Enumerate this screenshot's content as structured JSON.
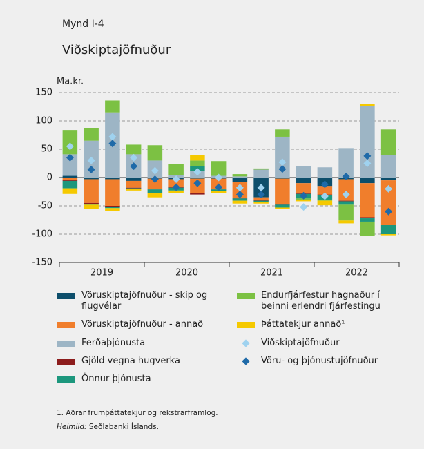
{
  "chart_data": {
    "type": "stacked_bar",
    "figure_label": "Mynd I-4",
    "title": "Viðskiptajöfnuður",
    "y_label": "Ma.kr.",
    "categories": [
      null,
      null,
      null,
      null,
      null,
      null,
      null,
      null,
      null,
      null,
      null,
      null,
      null,
      null,
      null,
      null
    ],
    "year_groups": [
      "2019",
      "2020",
      "2021",
      "2022"
    ],
    "ylim": [
      -150,
      150
    ],
    "yticks": [
      150,
      100,
      50,
      0,
      -50,
      -100,
      -150
    ],
    "grid": true,
    "series": [
      {
        "name": "Vöruskiptajöfnuður - skip og flugvélar",
        "color": "#0d4e6b",
        "values": [
          3,
          -3,
          -3,
          -6,
          -2,
          -3,
          -2,
          -2,
          -8,
          -35,
          -2,
          -10,
          -15,
          -3,
          -10,
          -5
        ]
      },
      {
        "name": "Vöruskiptajöfnuður - annað",
        "color": "#f07e2c",
        "values": [
          -4,
          -42,
          -47,
          -12,
          -18,
          -14,
          -26,
          -18,
          -28,
          -5,
          -45,
          -18,
          -15,
          -38,
          -60,
          -78
        ]
      },
      {
        "name": "Ferðaþjónusta",
        "color": "#9db5c5",
        "values": [
          38,
          65,
          115,
          41,
          30,
          4,
          12,
          3,
          2,
          14,
          72,
          20,
          18,
          52,
          126,
          40
        ]
      },
      {
        "name": "Gjöld vegna hugverka",
        "color": "#8c1c1c",
        "values": [
          -2,
          -2,
          -2,
          -1,
          -1,
          -1,
          -2,
          -1,
          -1,
          -1,
          -1,
          -1,
          -1,
          -1,
          -2,
          -1
        ]
      },
      {
        "name": "Önnur þjónusta",
        "color": "#1c977d",
        "values": [
          -13,
          -1,
          -2,
          -1,
          -6,
          -5,
          8,
          -3,
          -4,
          -2,
          -5,
          -8,
          -8,
          -6,
          -6,
          -16
        ]
      },
      {
        "name": "Endurfjárfestur hagnaður í beinni erlendri fjárfestingu",
        "color": "#7cc143",
        "values": [
          43,
          22,
          21,
          17,
          27,
          20,
          10,
          26,
          4,
          2,
          13,
          -2,
          -2,
          -28,
          -25,
          45
        ]
      },
      {
        "name": "Þáttatekjur annað¹",
        "color": "#f5c900",
        "values": [
          -10,
          -8,
          -5,
          -3,
          -8,
          -4,
          10,
          -3,
          -5,
          -3,
          -3,
          -3,
          -8,
          -5,
          4,
          -2
        ]
      }
    ],
    "markers": [
      {
        "name": "Viðskiptajöfnuður",
        "color": "#9fd2ef",
        "values": [
          55,
          30,
          72,
          35,
          12,
          -3,
          10,
          0,
          -18,
          -18,
          27,
          -52,
          -33,
          -30,
          25,
          -20
        ]
      },
      {
        "name": "Vöru- og þjónustujöfnuður",
        "color": "#1f6aa8",
        "values": [
          35,
          14,
          60,
          20,
          -3,
          -17,
          -10,
          -17,
          -30,
          -30,
          15,
          -32,
          -12,
          2,
          38,
          -60
        ]
      }
    ],
    "footnote": "1. Aðrar frumþáttatekjur og rekstrarframlög.",
    "source": {
      "label": "Heimild:",
      "text": "Seðlabanki Íslands."
    }
  }
}
